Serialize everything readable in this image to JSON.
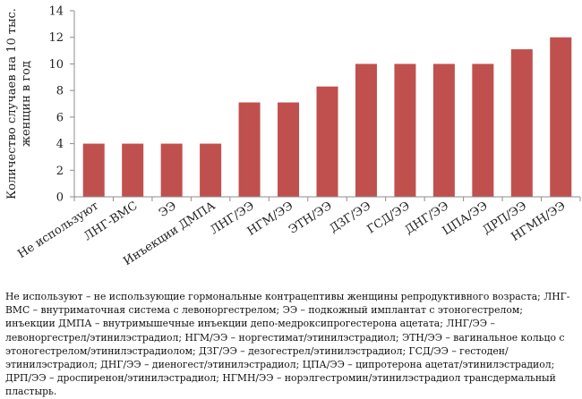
{
  "chart_data": {
    "type": "bar",
    "title": "",
    "xlabel": "",
    "ylabel": "Количество случаев на 10 тыс. женщин в год",
    "ylabel_lines": [
      "Количество случаев на 10 тыс.",
      "женщин в год"
    ],
    "ylim": [
      0,
      14
    ],
    "yticks": [
      0,
      2,
      4,
      6,
      8,
      10,
      12,
      14
    ],
    "grid": false,
    "legend": "none",
    "bar_color": "#c0504d",
    "categories": [
      "Не используют",
      "ЛНГ-ВМС",
      "ЭЭ",
      "Инъекции ДМПА",
      "ЛНГ/ЭЭ",
      "НГМ/ЭЭ",
      "ЭТН/ЭЭ",
      "ДЗГ/ЭЭ",
      "ГСД/ЭЭ",
      "ДНГ/ЭЭ",
      "ЦПА/ЭЭ",
      "ДРП/ЭЭ",
      "НГМН/ЭЭ"
    ],
    "values": [
      4,
      4,
      4,
      4,
      7.1,
      7.1,
      8.3,
      10,
      10,
      10,
      10,
      11.1,
      12
    ]
  },
  "caption": "Не используют – не использующие гормональные контрацептивы женщины репродуктивного возраста; ЛНГ-ВМС – внутриматочная система с левоноргестрелом; ЭЭ – подкожный имплантат с этоногестрелом; инъекции ДМПА – внутримышечные инъекции депо-медроксипрогестерона ацетата; ЛНГ/ЭЭ – левоноргестрел/этинилэстрадиол; НГМ/ЭЭ – норгестимат/этинилэстрадиол; ЭТН/ЭЭ – вагинальное кольцо с этоногестрелом/этинилэстрадиолом; ДЗГ/ЭЭ – дезогестрел/этинилэстрадиол; ГСД/ЭЭ – гестоден/этинилэстрадиол; ДНГ/ЭЭ – диеногест/этинилэстрадиол; ЦПА/ЭЭ – ципротерона ацетат/этинилэстрадиол; ДРП/ЭЭ – дроспиренон/этинилэстрадиол; НГМН/ЭЭ – норэлгестромин/этинилэстрадиол трансдермальный пластырь."
}
